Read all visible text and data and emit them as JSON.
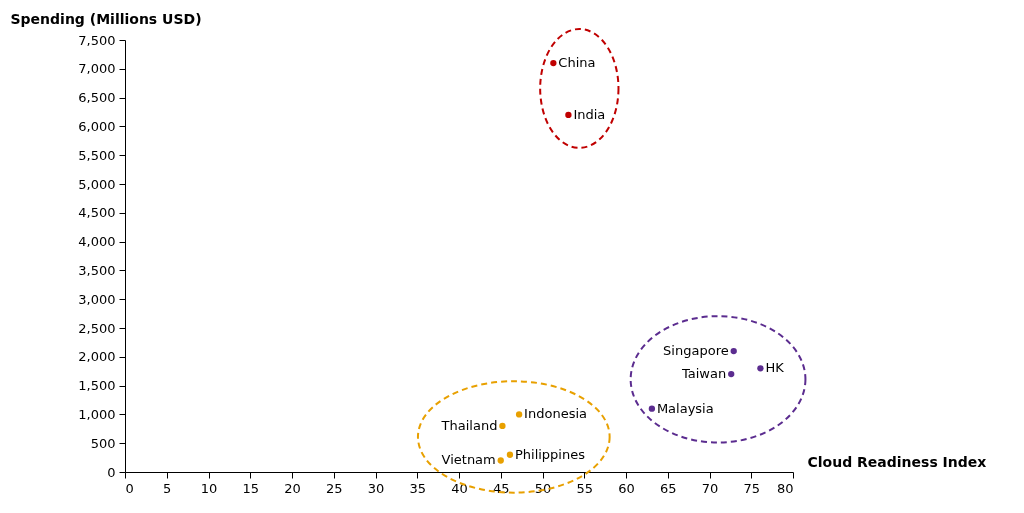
{
  "chart_data": {
    "type": "scatter",
    "xlabel": "Cloud Readiness Index",
    "ylabel": "Spending (Millions USD)",
    "xlim": [
      0,
      80
    ],
    "xticks": [
      0,
      5,
      10,
      15,
      20,
      25,
      30,
      35,
      40,
      45,
      50,
      55,
      60,
      65,
      70,
      75,
      80
    ],
    "ylim": [
      0,
      7500
    ],
    "yticks": [
      0,
      500,
      {
        "value": 1000,
        "label": "1,000"
      },
      {
        "value": 1500,
        "label": "1,500"
      },
      {
        "value": 2000,
        "label": "2,000"
      },
      {
        "value": 2500,
        "label": "2,500"
      },
      {
        "value": 3000,
        "label": "3,000"
      },
      {
        "value": 3500,
        "label": "3,500"
      },
      {
        "value": 4000,
        "label": "4,000"
      },
      {
        "value": 4500,
        "label": "4,500"
      },
      {
        "value": 5000,
        "label": "5,000"
      },
      {
        "value": 5500,
        "label": "5,500"
      },
      {
        "value": 6000,
        "label": "6,000"
      },
      {
        "value": 6500,
        "label": "6,500"
      },
      {
        "value": 7000,
        "label": "7,000"
      },
      {
        "value": 7500,
        "label": "7,500"
      }
    ],
    "grid": false,
    "legend": false,
    "marker": "circle",
    "series": [
      {
        "color": "#c00000",
        "x": [
          51.3,
          53.1
        ],
        "values": [
          7100,
          6200
        ]
      },
      {
        "color": "#e8a000",
        "x": [
          45.2,
          47.2,
          45.0,
          46.1
        ],
        "values": [
          800,
          1000,
          200,
          300
        ]
      },
      {
        "color": "#5b2c8f",
        "x": [
          72.9,
          76.1,
          72.6,
          63.1
        ],
        "values": [
          2100,
          1800,
          1700,
          1100
        ]
      }
    ],
    "annotations": [
      {
        "text": "China",
        "x": 51.3,
        "y": 7100
      },
      {
        "text": "India",
        "x": 53.1,
        "y": 6200
      },
      {
        "text": "Thailand",
        "x": 45.2,
        "y": 800
      },
      {
        "text": "Indonesia",
        "x": 47.2,
        "y": 1000
      },
      {
        "text": "Vietnam",
        "x": 45.0,
        "y": 200
      },
      {
        "text": "Philippines",
        "x": 46.1,
        "y": 300
      },
      {
        "text": "Singapore",
        "x": 72.9,
        "y": 2100
      },
      {
        "text": "HK",
        "x": 76.1,
        "y": 1800
      },
      {
        "text": "Taiwan",
        "x": 72.6,
        "y": 1700
      },
      {
        "text": "Malaysia",
        "x": 63.1,
        "y": 1100
      }
    ]
  }
}
